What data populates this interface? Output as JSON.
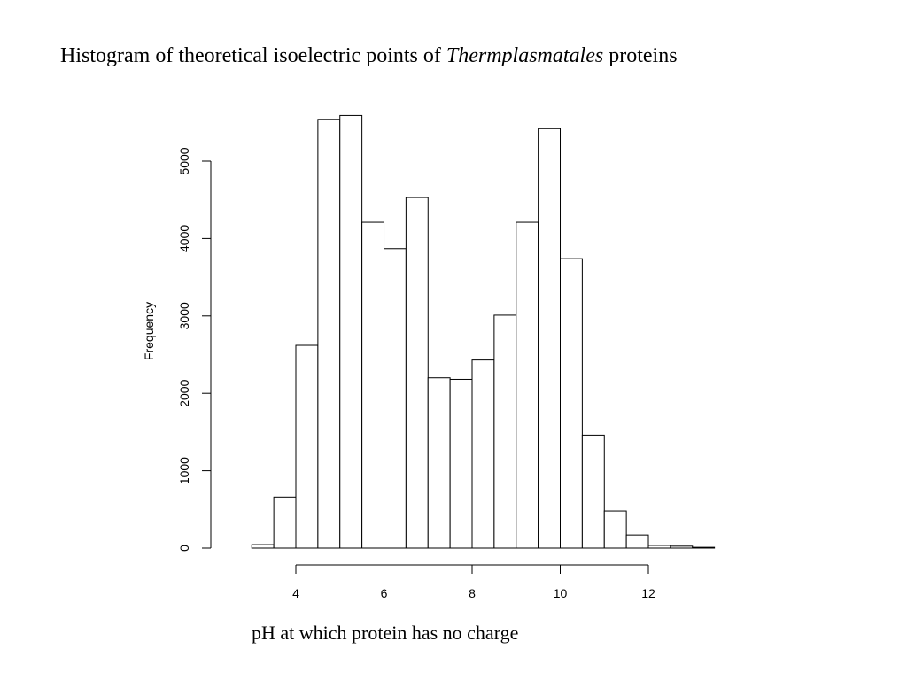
{
  "title": {
    "prefix": "Histogram of theoretical isoelectric points of ",
    "italic": "Thermplasmatales",
    "suffix": " proteins"
  },
  "chart_data": {
    "type": "bar",
    "title": "Histogram of theoretical isoelectric points of Thermplasmatales proteins",
    "xlabel": "pH at which protein has no charge",
    "ylabel": "Frequency",
    "bin_width": 0.5,
    "bins": [
      {
        "start": 2.5,
        "end": 3.0,
        "value": 0
      },
      {
        "start": 3.0,
        "end": 3.5,
        "value": 45
      },
      {
        "start": 3.5,
        "end": 4.0,
        "value": 660
      },
      {
        "start": 4.0,
        "end": 4.5,
        "value": 2620
      },
      {
        "start": 4.5,
        "end": 5.0,
        "value": 5540
      },
      {
        "start": 5.0,
        "end": 5.5,
        "value": 5590
      },
      {
        "start": 5.5,
        "end": 6.0,
        "value": 4210
      },
      {
        "start": 6.0,
        "end": 6.5,
        "value": 3870
      },
      {
        "start": 6.5,
        "end": 7.0,
        "value": 4530
      },
      {
        "start": 7.0,
        "end": 7.5,
        "value": 2200
      },
      {
        "start": 7.5,
        "end": 8.0,
        "value": 2180
      },
      {
        "start": 8.0,
        "end": 8.5,
        "value": 2430
      },
      {
        "start": 8.5,
        "end": 9.0,
        "value": 3010
      },
      {
        "start": 9.0,
        "end": 9.5,
        "value": 4210
      },
      {
        "start": 9.5,
        "end": 10.0,
        "value": 5420
      },
      {
        "start": 10.0,
        "end": 10.5,
        "value": 3740
      },
      {
        "start": 10.5,
        "end": 11.0,
        "value": 1460
      },
      {
        "start": 11.0,
        "end": 11.5,
        "value": 480
      },
      {
        "start": 11.5,
        "end": 12.0,
        "value": 170
      },
      {
        "start": 12.0,
        "end": 12.5,
        "value": 35
      },
      {
        "start": 12.5,
        "end": 13.0,
        "value": 25
      },
      {
        "start": 13.0,
        "end": 13.5,
        "value": 10
      }
    ],
    "xlim": [
      2.5,
      13.5
    ],
    "ylim": [
      0,
      5600
    ],
    "x_ticks": [
      4,
      6,
      8,
      10,
      12
    ],
    "y_ticks": [
      0,
      1000,
      2000,
      3000,
      4000,
      5000
    ],
    "grid": false,
    "legend": "none"
  }
}
